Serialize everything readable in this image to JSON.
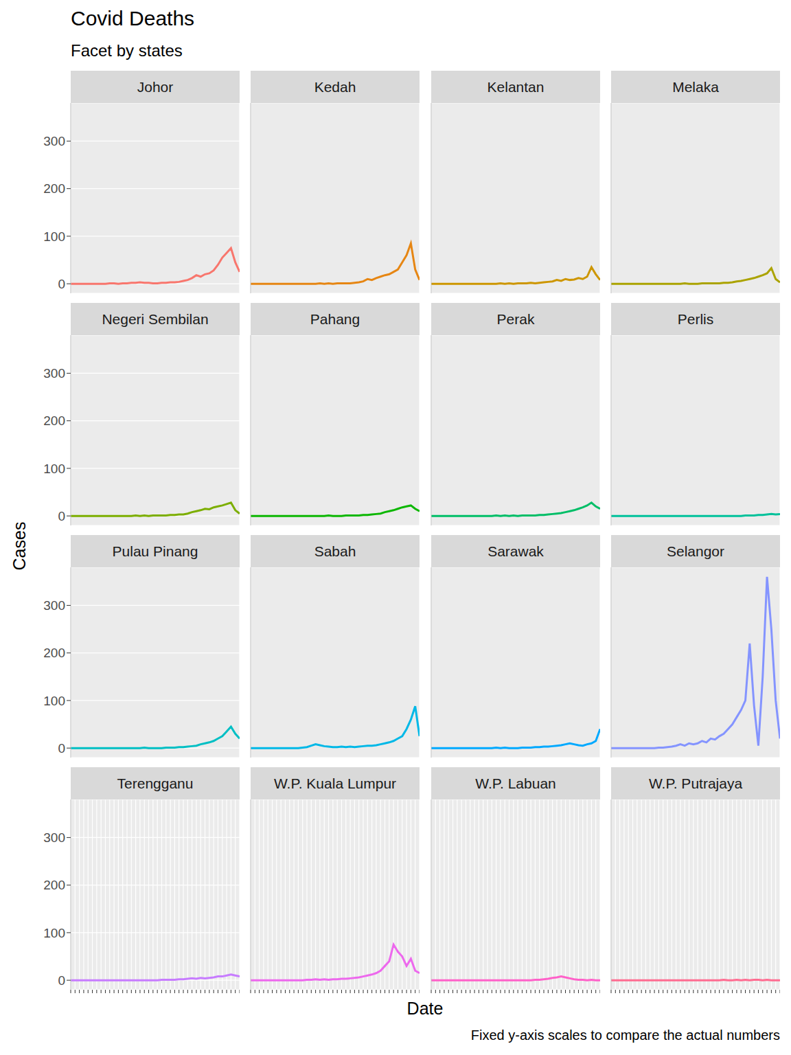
{
  "chart_data": {
    "type": "line",
    "title": "Covid Deaths",
    "subtitle": "Facet by states",
    "x_label": "Date",
    "y_label": "Cases",
    "annotations": [
      "Fixed y-axis scales to compare the actual numbers"
    ],
    "categories": [
      null,
      null,
      null,
      null,
      null,
      null,
      null,
      null,
      null,
      null,
      null,
      null,
      null,
      null,
      null,
      null,
      null,
      null,
      null,
      null,
      null,
      null,
      null,
      null,
      null,
      null,
      null,
      null,
      null,
      null,
      null,
      null,
      null,
      null,
      null,
      null,
      null,
      null,
      null,
      null
    ],
    "ylim": [
      -20,
      380
    ],
    "yticks": [
      0,
      100,
      200,
      300
    ],
    "grid": true,
    "tick_labels": "y",
    "series": [
      {
        "name": "Johor",
        "color": "#F8766D",
        "values": [
          0,
          0,
          0,
          0,
          0,
          0,
          0,
          0,
          0,
          1,
          1,
          0,
          1,
          1,
          2,
          2,
          3,
          2,
          2,
          1,
          1,
          2,
          2,
          3,
          3,
          4,
          6,
          8,
          12,
          18,
          15,
          20,
          22,
          28,
          40,
          55,
          65,
          75,
          45,
          25
        ]
      },
      {
        "name": "Kedah",
        "color": "#E68613",
        "values": [
          0,
          0,
          0,
          0,
          0,
          0,
          0,
          0,
          0,
          0,
          0,
          0,
          0,
          0,
          0,
          0,
          1,
          0,
          1,
          0,
          1,
          1,
          1,
          1,
          2,
          3,
          5,
          10,
          8,
          12,
          15,
          18,
          20,
          25,
          30,
          45,
          60,
          85,
          30,
          8
        ]
      },
      {
        "name": "Kelantan",
        "color": "#CD9600",
        "values": [
          0,
          0,
          0,
          0,
          0,
          0,
          0,
          0,
          0,
          0,
          0,
          0,
          0,
          0,
          0,
          0,
          1,
          0,
          1,
          0,
          1,
          1,
          1,
          2,
          1,
          2,
          3,
          4,
          5,
          8,
          6,
          10,
          8,
          9,
          12,
          10,
          15,
          35,
          20,
          8
        ]
      },
      {
        "name": "Melaka",
        "color": "#ABA300",
        "values": [
          0,
          0,
          0,
          0,
          0,
          0,
          0,
          0,
          0,
          0,
          0,
          0,
          0,
          0,
          0,
          0,
          0,
          1,
          0,
          0,
          0,
          1,
          1,
          1,
          1,
          1,
          2,
          2,
          3,
          5,
          6,
          8,
          10,
          12,
          15,
          18,
          22,
          33,
          10,
          3
        ]
      },
      {
        "name": "Negeri Sembilan",
        "color": "#7CAE00",
        "values": [
          0,
          0,
          0,
          0,
          0,
          0,
          0,
          0,
          0,
          0,
          0,
          0,
          0,
          0,
          0,
          1,
          0,
          1,
          0,
          1,
          1,
          1,
          1,
          2,
          2,
          3,
          3,
          5,
          8,
          10,
          12,
          15,
          14,
          18,
          20,
          22,
          25,
          28,
          12,
          5
        ]
      },
      {
        "name": "Pahang",
        "color": "#0CB702",
        "values": [
          0,
          0,
          0,
          0,
          0,
          0,
          0,
          0,
          0,
          0,
          0,
          0,
          0,
          0,
          0,
          0,
          0,
          0,
          1,
          0,
          0,
          0,
          1,
          1,
          1,
          1,
          2,
          2,
          3,
          4,
          5,
          8,
          10,
          12,
          15,
          18,
          20,
          22,
          15,
          10
        ]
      },
      {
        "name": "Perak",
        "color": "#00BE67",
        "values": [
          0,
          0,
          0,
          0,
          0,
          0,
          0,
          0,
          0,
          0,
          0,
          0,
          0,
          0,
          0,
          1,
          0,
          1,
          0,
          1,
          0,
          1,
          1,
          1,
          1,
          2,
          2,
          3,
          4,
          5,
          6,
          8,
          10,
          12,
          15,
          18,
          22,
          28,
          20,
          15
        ]
      },
      {
        "name": "Perlis",
        "color": "#00C19A",
        "values": [
          0,
          0,
          0,
          0,
          0,
          0,
          0,
          0,
          0,
          0,
          0,
          0,
          0,
          0,
          0,
          0,
          0,
          0,
          0,
          0,
          0,
          0,
          0,
          0,
          0,
          0,
          0,
          0,
          0,
          0,
          0,
          1,
          1,
          1,
          2,
          2,
          3,
          4,
          3,
          4
        ]
      },
      {
        "name": "Pulau Pinang",
        "color": "#00BFC4",
        "values": [
          0,
          0,
          0,
          0,
          0,
          0,
          0,
          0,
          0,
          0,
          0,
          0,
          0,
          0,
          0,
          0,
          0,
          1,
          0,
          0,
          0,
          0,
          1,
          1,
          1,
          2,
          2,
          3,
          4,
          5,
          8,
          10,
          12,
          15,
          20,
          25,
          35,
          45,
          30,
          20
        ]
      },
      {
        "name": "Sabah",
        "color": "#00B8E7",
        "values": [
          0,
          0,
          0,
          0,
          0,
          0,
          0,
          0,
          0,
          0,
          0,
          0,
          1,
          2,
          5,
          8,
          6,
          4,
          3,
          2,
          2,
          3,
          2,
          3,
          2,
          3,
          4,
          5,
          5,
          6,
          8,
          10,
          12,
          15,
          20,
          25,
          40,
          60,
          88,
          25
        ]
      },
      {
        "name": "Sarawak",
        "color": "#00A9FF",
        "values": [
          0,
          0,
          0,
          0,
          0,
          0,
          0,
          0,
          0,
          0,
          0,
          0,
          0,
          0,
          0,
          1,
          0,
          1,
          0,
          0,
          0,
          1,
          1,
          1,
          2,
          2,
          3,
          3,
          4,
          5,
          6,
          8,
          10,
          8,
          6,
          5,
          8,
          10,
          15,
          40
        ]
      },
      {
        "name": "Selangor",
        "color": "#8494FF",
        "values": [
          0,
          0,
          0,
          0,
          0,
          0,
          0,
          0,
          0,
          0,
          0,
          1,
          1,
          2,
          3,
          5,
          8,
          5,
          10,
          8,
          10,
          15,
          12,
          20,
          18,
          25,
          30,
          40,
          50,
          65,
          80,
          100,
          220,
          90,
          5,
          150,
          360,
          250,
          100,
          20
        ]
      },
      {
        "name": "Terengganu",
        "color": "#C77CFF",
        "values": [
          0,
          0,
          0,
          0,
          0,
          0,
          0,
          0,
          0,
          0,
          0,
          0,
          0,
          0,
          0,
          0,
          0,
          0,
          0,
          0,
          0,
          1,
          1,
          1,
          1,
          2,
          2,
          3,
          4,
          3,
          5,
          4,
          5,
          6,
          8,
          8,
          10,
          12,
          10,
          8
        ]
      },
      {
        "name": "W.P. Kuala Lumpur",
        "color": "#ED68ED",
        "values": [
          0,
          0,
          0,
          0,
          0,
          0,
          0,
          0,
          0,
          0,
          0,
          0,
          0,
          1,
          1,
          2,
          1,
          2,
          1,
          2,
          2,
          3,
          3,
          4,
          5,
          6,
          8,
          10,
          12,
          15,
          20,
          30,
          40,
          75,
          60,
          50,
          30,
          45,
          20,
          15
        ]
      },
      {
        "name": "W.P. Labuan",
        "color": "#FF61C9",
        "values": [
          0,
          0,
          0,
          0,
          0,
          0,
          0,
          0,
          0,
          0,
          0,
          0,
          0,
          0,
          0,
          0,
          0,
          0,
          0,
          0,
          0,
          0,
          0,
          0,
          1,
          1,
          2,
          3,
          5,
          6,
          8,
          6,
          4,
          2,
          1,
          1,
          0,
          1,
          0,
          0
        ]
      },
      {
        "name": "W.P. Putrajaya",
        "color": "#FF6C91",
        "values": [
          0,
          0,
          0,
          0,
          0,
          0,
          0,
          0,
          0,
          0,
          0,
          0,
          0,
          0,
          0,
          0,
          0,
          0,
          0,
          0,
          0,
          0,
          0,
          0,
          0,
          0,
          1,
          0,
          0,
          1,
          0,
          1,
          0,
          1,
          1,
          0,
          1,
          0,
          0,
          0
        ]
      }
    ]
  }
}
